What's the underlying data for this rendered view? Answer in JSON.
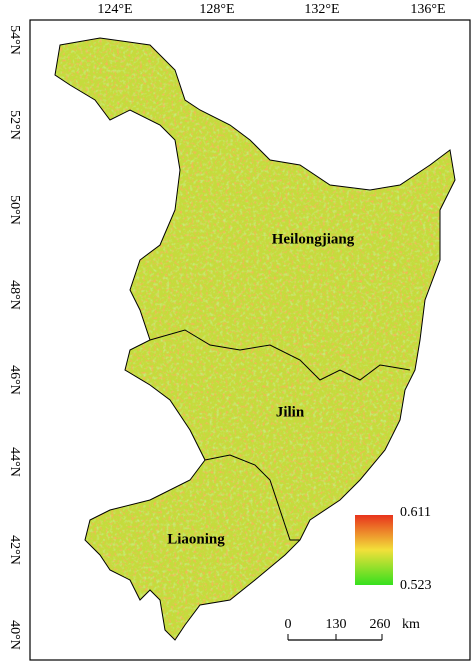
{
  "map": {
    "longitude_labels": [
      "124°E",
      "128°E",
      "132°E",
      "136°E"
    ],
    "latitude_labels": [
      "54°N",
      "52°N",
      "50°N",
      "48°N",
      "46°N",
      "44°N",
      "42°N",
      "40°N"
    ],
    "regions": [
      "Heilongjiang",
      "Jilin",
      "Liaoning"
    ],
    "legend": {
      "max": "0.611",
      "min": "0.523"
    },
    "scale_bar": {
      "labels": [
        "0",
        "130",
        "260"
      ],
      "unit": "km"
    }
  }
}
